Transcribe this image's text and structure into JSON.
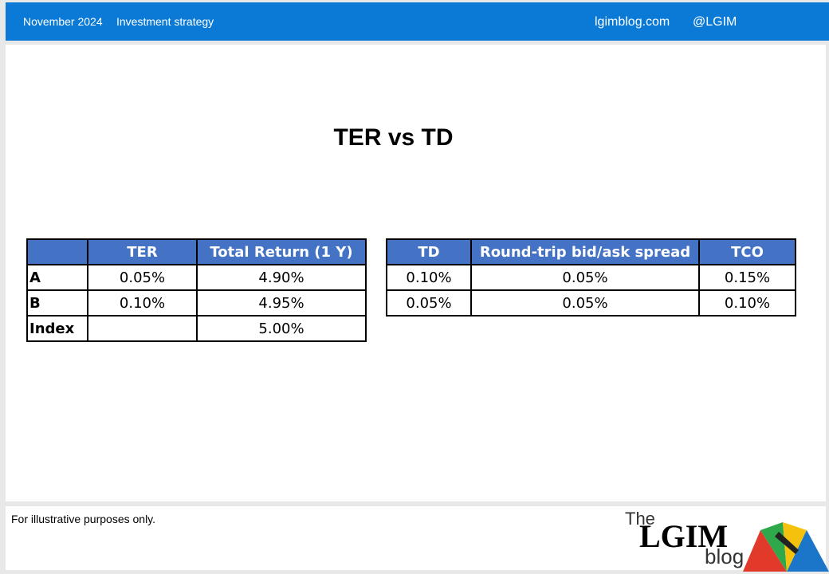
{
  "header": {
    "date": "November 2024",
    "section": "Investment strategy",
    "site": "lgimblog.com",
    "handle": "@LGIM"
  },
  "main": {
    "title": "TER vs TD"
  },
  "table1": {
    "headers": [
      "",
      "TER",
      "Total Return (1 Y)"
    ],
    "rows": [
      {
        "label": "A",
        "ter": "0.05%",
        "total_return": "4.90%"
      },
      {
        "label": "B",
        "ter": "0.10%",
        "total_return": "4.95%"
      },
      {
        "label": "Index",
        "ter": "",
        "total_return": "5.00%"
      }
    ]
  },
  "table2": {
    "headers": [
      "TD",
      "Round-trip bid/ask spread",
      "TCO"
    ],
    "rows": [
      {
        "td": "0.10%",
        "spread": "0.05%",
        "tco": "0.15%"
      },
      {
        "td": "0.05%",
        "spread": "0.05%",
        "tco": "0.10%"
      }
    ]
  },
  "footer": {
    "note": "For illustrative purposes only.",
    "logo_the": "The",
    "logo_lgim": "LGIM",
    "logo_blog": "blog"
  },
  "colors": {
    "header_bg": "#0a7ad6",
    "table_header_bg": "#4472c4",
    "umbrella_red": "#e23a2a",
    "umbrella_green": "#2ea84a",
    "umbrella_yellow": "#f4c20d",
    "umbrella_blue": "#1b75c9"
  },
  "icons": {
    "logo_mark": "umbrella-icon"
  }
}
